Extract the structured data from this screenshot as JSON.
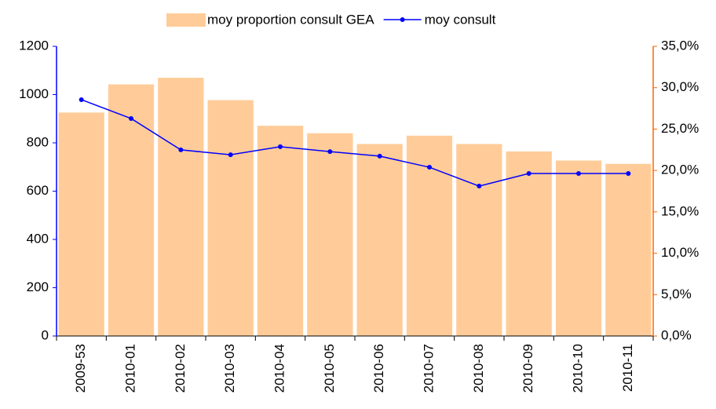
{
  "chart_data": {
    "type": "combo",
    "categories": [
      "2009-53",
      "2010-01",
      "2010-02",
      "2010-03",
      "2010-04",
      "2010-05",
      "2010-06",
      "2010-07",
      "2010-08",
      "2010-09",
      "2010-10",
      "2010-11"
    ],
    "series": [
      {
        "name": "moy proportion consult GEA",
        "type": "bar",
        "axis": "y2",
        "color": "#FFCC99",
        "values": [
          27.0,
          30.4,
          31.2,
          28.5,
          25.4,
          24.5,
          23.2,
          24.2,
          23.2,
          22.3,
          21.2,
          20.8
        ]
      },
      {
        "name": "moy consult",
        "type": "line",
        "color": "#0000FF",
        "values": [
          979,
          901,
          771,
          751,
          784,
          764,
          745,
          699,
          621,
          673,
          673,
          673
        ]
      }
    ],
    "ylim": [
      0,
      1200
    ],
    "yticks": [
      0,
      200,
      400,
      600,
      800,
      1000,
      1200
    ],
    "y_axis_color": "#0000FF",
    "y2lim": [
      0,
      35
    ],
    "y2ticks": [
      {
        "value": 0,
        "label": "0,0%"
      },
      {
        "value": 5,
        "label": "5,0%"
      },
      {
        "value": 10,
        "label": "10,0%"
      },
      {
        "value": 15,
        "label": "15,0%"
      },
      {
        "value": 20,
        "label": "20,0%"
      },
      {
        "value": 25,
        "label": "25,0%"
      },
      {
        "value": 30,
        "label": "30,0%"
      },
      {
        "value": 35,
        "label": "35,0%"
      }
    ],
    "y2_axis_color": "#FF6600",
    "legend": "top"
  }
}
